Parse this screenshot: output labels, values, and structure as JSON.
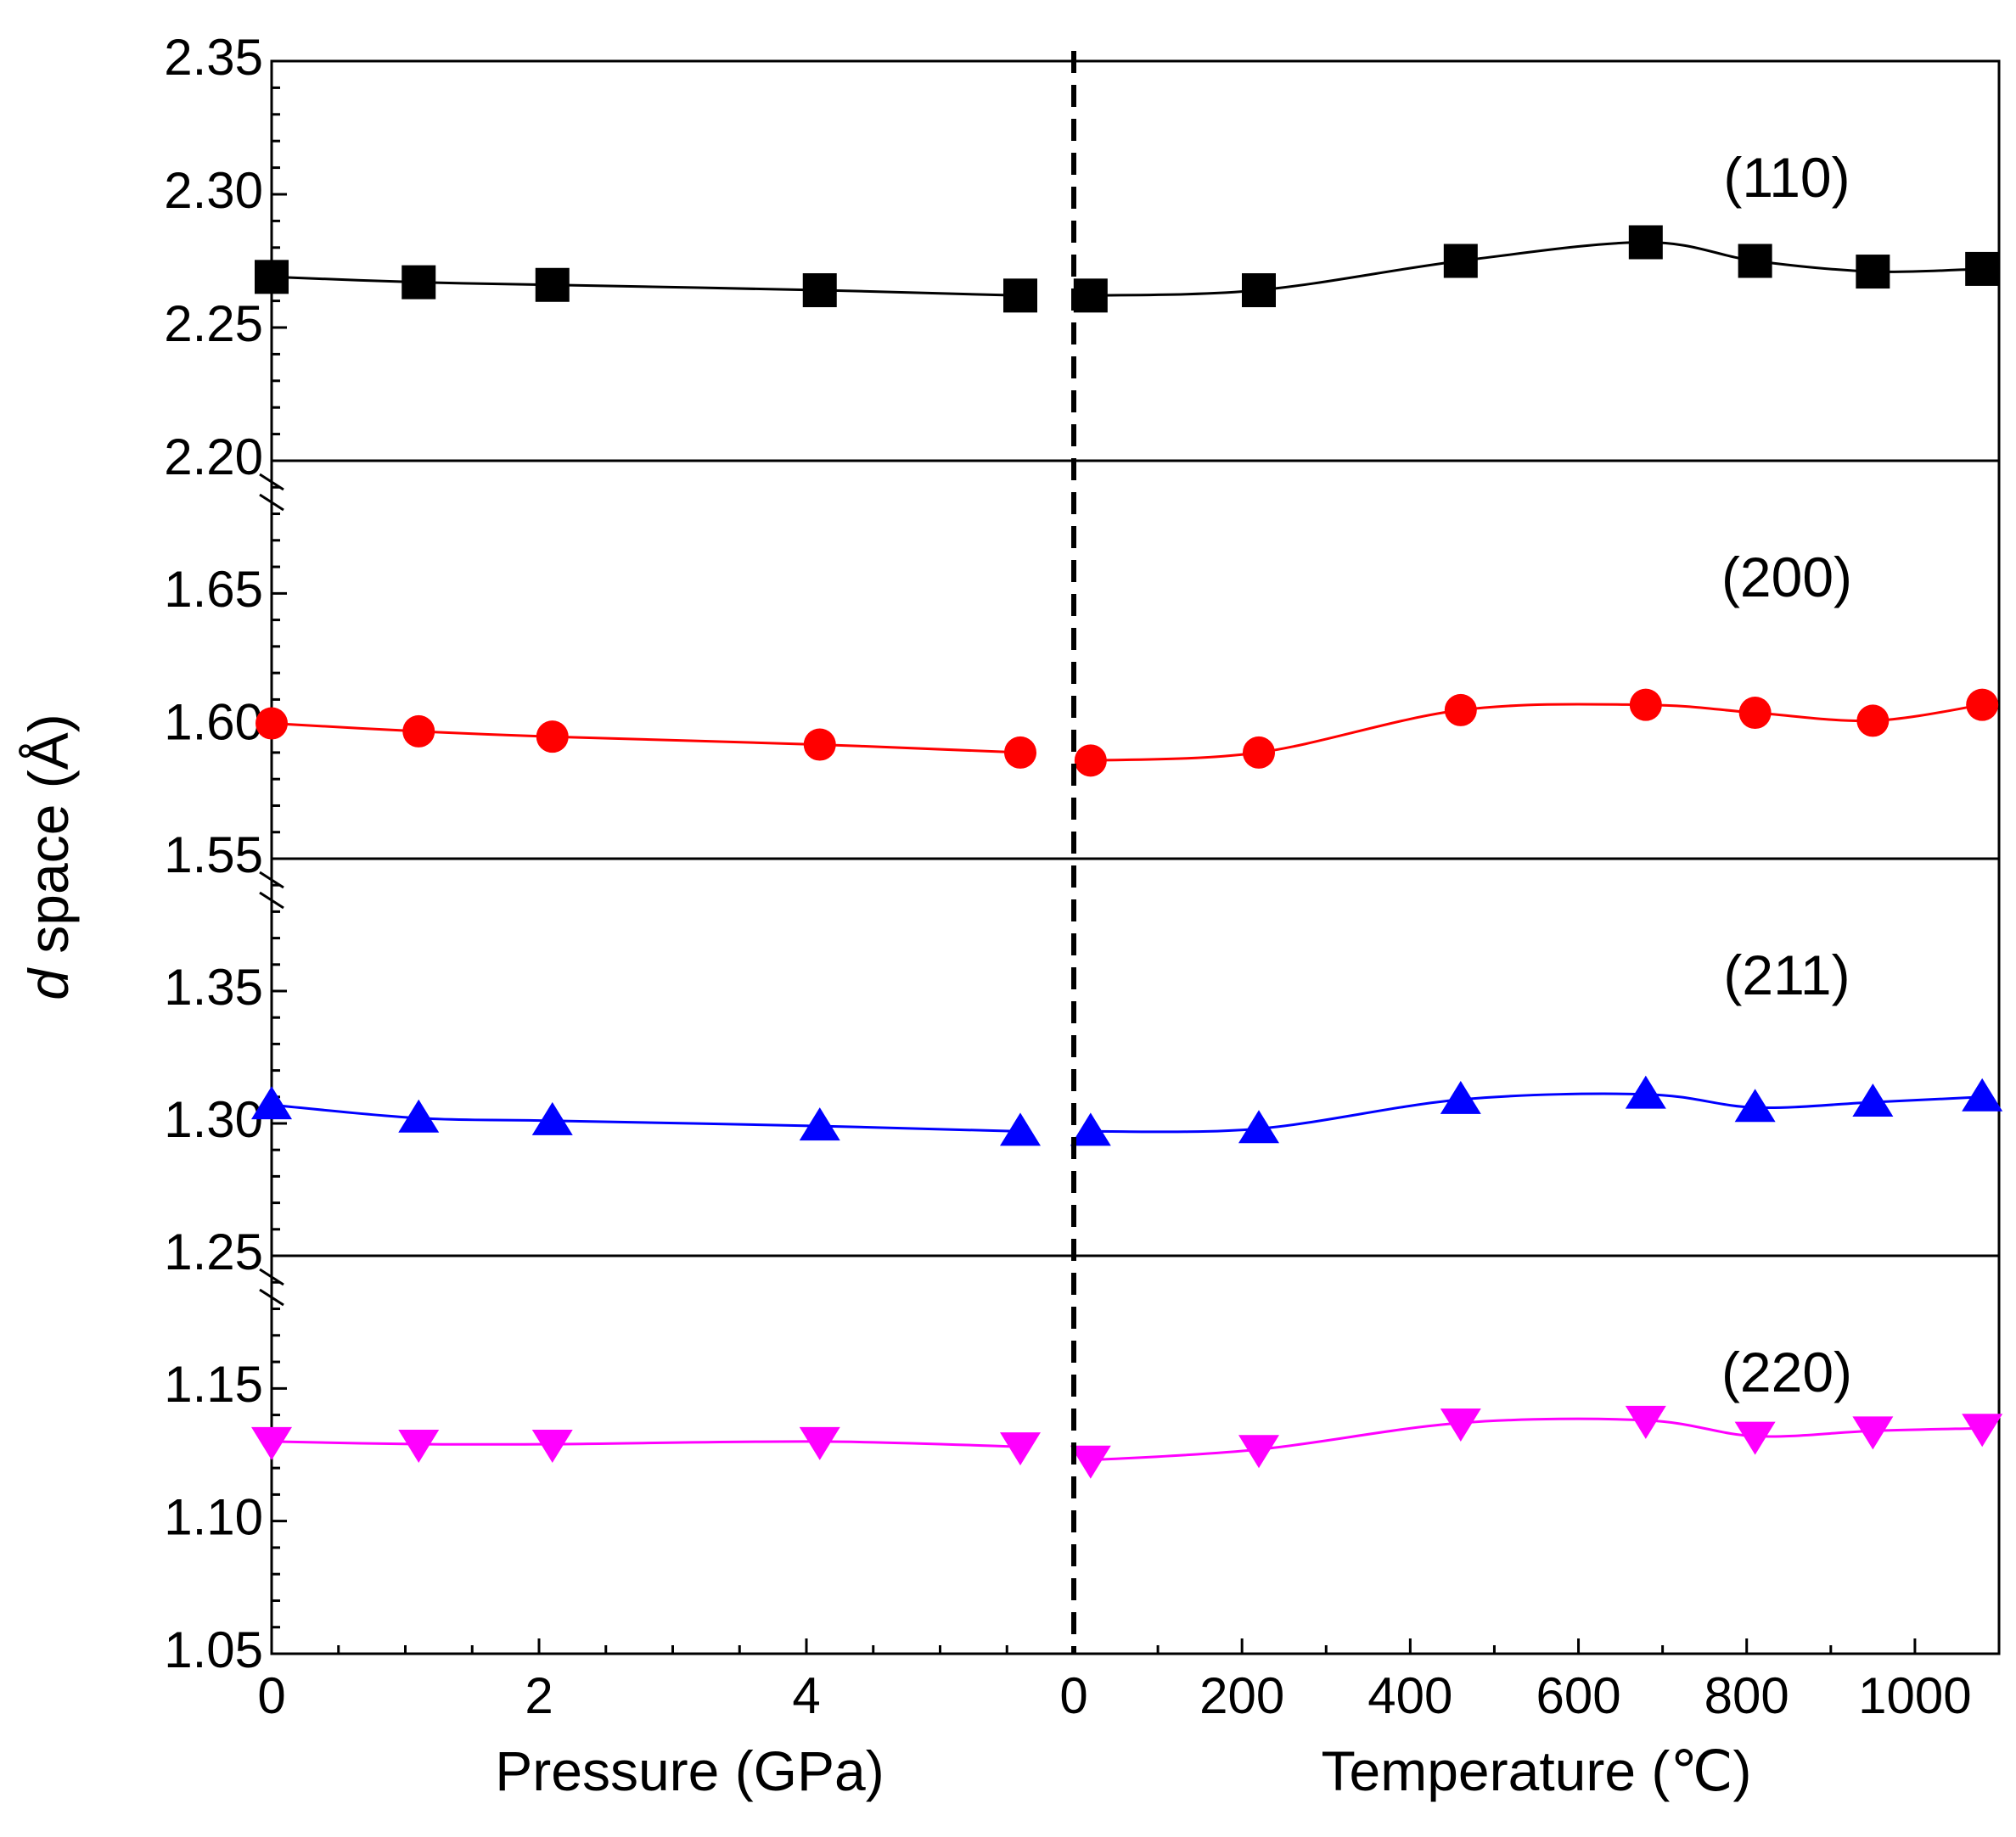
{
  "chart_data": {
    "type": "scatter",
    "ylabel": {
      "italic_part": "d",
      "rest": " space (Å)"
    },
    "x_axes": [
      {
        "label": "Pressure (GPa)",
        "range": [
          0,
          6
        ],
        "ticks": [
          0,
          2,
          4
        ],
        "tick_labels": [
          "0",
          "2",
          "4"
        ]
      },
      {
        "label": "Temperature (℃)",
        "range": [
          0,
          1100
        ],
        "ticks": [
          0,
          200,
          400,
          600,
          800,
          1000
        ],
        "tick_labels": [
          "0",
          "200",
          "400",
          "600",
          "800",
          "1000"
        ]
      }
    ],
    "divider": "dashed vertical line between pressure and temperature regions",
    "panels": [
      {
        "label": "(110)",
        "color": "#000000",
        "marker": "square",
        "ylim": [
          2.2,
          2.35
        ],
        "yticks": [
          2.2,
          2.25,
          2.3,
          2.35
        ],
        "ytick_labels": [
          "2.20",
          "2.25",
          "2.30",
          "2.35"
        ],
        "pressure": {
          "x": [
            0,
            1.1,
            2.1,
            4.1,
            5.6
          ],
          "y": [
            2.269,
            2.267,
            2.266,
            2.264,
            2.262
          ]
        },
        "temperature": {
          "x": [
            20,
            220,
            460,
            680,
            810,
            950,
            1080
          ],
          "y": [
            2.262,
            2.264,
            2.275,
            2.282,
            2.275,
            2.271,
            2.272
          ]
        }
      },
      {
        "label": "(200)",
        "color": "#ff0000",
        "marker": "circle",
        "ylim": [
          1.55,
          1.7
        ],
        "yticks": [
          1.55,
          1.6,
          1.65
        ],
        "ytick_labels": [
          "1.55",
          "1.60",
          "1.65"
        ],
        "pressure": {
          "x": [
            0,
            1.1,
            2.1,
            4.1,
            5.6
          ],
          "y": [
            1.601,
            1.598,
            1.596,
            1.593,
            1.59
          ]
        },
        "temperature": {
          "x": [
            20,
            220,
            460,
            680,
            810,
            950,
            1080
          ],
          "y": [
            1.587,
            1.59,
            1.606,
            1.608,
            1.605,
            1.602,
            1.608
          ]
        }
      },
      {
        "label": "(211)",
        "color": "#0000ff",
        "marker": "triangle-up",
        "ylim": [
          1.25,
          1.4
        ],
        "yticks": [
          1.25,
          1.3,
          1.35
        ],
        "ytick_labels": [
          "1.25",
          "1.30",
          "1.35"
        ],
        "pressure": {
          "x": [
            0,
            1.1,
            2.1,
            4.1,
            5.6
          ],
          "y": [
            1.307,
            1.302,
            1.301,
            1.299,
            1.297
          ]
        },
        "temperature": {
          "x": [
            20,
            220,
            460,
            680,
            810,
            950,
            1080
          ],
          "y": [
            1.297,
            1.298,
            1.309,
            1.311,
            1.306,
            1.308,
            1.31
          ]
        }
      },
      {
        "label": "(220)",
        "color": "#ff00ff",
        "marker": "triangle-down",
        "ylim": [
          1.05,
          1.2
        ],
        "yticks": [
          1.05,
          1.1,
          1.15
        ],
        "ytick_labels": [
          "1.05",
          "1.10",
          "1.15"
        ],
        "pressure": {
          "x": [
            0,
            1.1,
            2.1,
            4.1,
            5.6
          ],
          "y": [
            1.13,
            1.129,
            1.129,
            1.13,
            1.128
          ]
        },
        "temperature": {
          "x": [
            20,
            220,
            460,
            680,
            810,
            950,
            1080
          ],
          "y": [
            1.123,
            1.127,
            1.137,
            1.138,
            1.132,
            1.134,
            1.135
          ]
        }
      }
    ]
  }
}
